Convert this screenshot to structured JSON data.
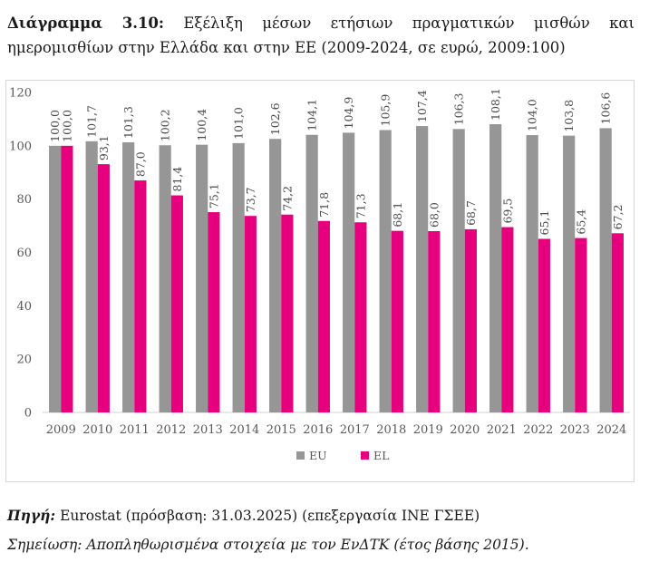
{
  "caption": {
    "lead": "Διάγραμμα 3.10:",
    "text": "Εξέλιξη μέσων ετήσιων πραγματικών μισθών και ημερομισθίων στην Ελλάδα και στην ΕΕ (2009-2024, σε ευρώ, 2009:100)"
  },
  "chart_data": {
    "type": "bar",
    "title": "",
    "xlabel": "",
    "ylabel": "",
    "ylim": [
      0,
      120
    ],
    "yticks": [
      0,
      20,
      40,
      60,
      80,
      100,
      120
    ],
    "grid": false,
    "legend_position": "bottom",
    "categories": [
      "2009",
      "2010",
      "2011",
      "2012",
      "2013",
      "2014",
      "2015",
      "2016",
      "2017",
      "2018",
      "2019",
      "2020",
      "2021",
      "2022",
      "2023",
      "2024"
    ],
    "series": [
      {
        "name": "EU",
        "color": "#969696",
        "values": [
          100.0,
          101.7,
          101.3,
          100.2,
          100.4,
          101.0,
          102.6,
          104.1,
          104.9,
          105.9,
          107.4,
          106.3,
          108.1,
          104.0,
          103.8,
          106.6
        ],
        "labels": [
          "100,0",
          "101,7",
          "101,3",
          "100,2",
          "100,4",
          "101,0",
          "102,6",
          "104,1",
          "104,9",
          "105,9",
          "107,4",
          "106,3",
          "108,1",
          "104,0",
          "103,8",
          "106,6"
        ]
      },
      {
        "name": "EL",
        "color": "#e6007e",
        "values": [
          100.0,
          93.1,
          87.0,
          81.4,
          75.1,
          73.7,
          74.2,
          71.8,
          71.3,
          68.1,
          68.0,
          68.7,
          69.5,
          65.1,
          65.4,
          67.2
        ],
        "labels": [
          "100,0",
          "93,1",
          "87,0",
          "81,4",
          "75,1",
          "73,7",
          "74,2",
          "71,8",
          "71,3",
          "68,1",
          "68,0",
          "68,7",
          "69,5",
          "65,1",
          "65,4",
          "67,2"
        ]
      }
    ]
  },
  "footer": {
    "source_label": "Πηγή:",
    "source_text": " Eurostat (πρόσβαση: 31.03.2025) (επεξεργασία ΙΝΕ ΓΣΕΕ)",
    "note": "Σημείωση: Αποπληθωρισμένα στοιχεία με τον ΕνΔΤΚ (έτος βάσης 2015)."
  }
}
